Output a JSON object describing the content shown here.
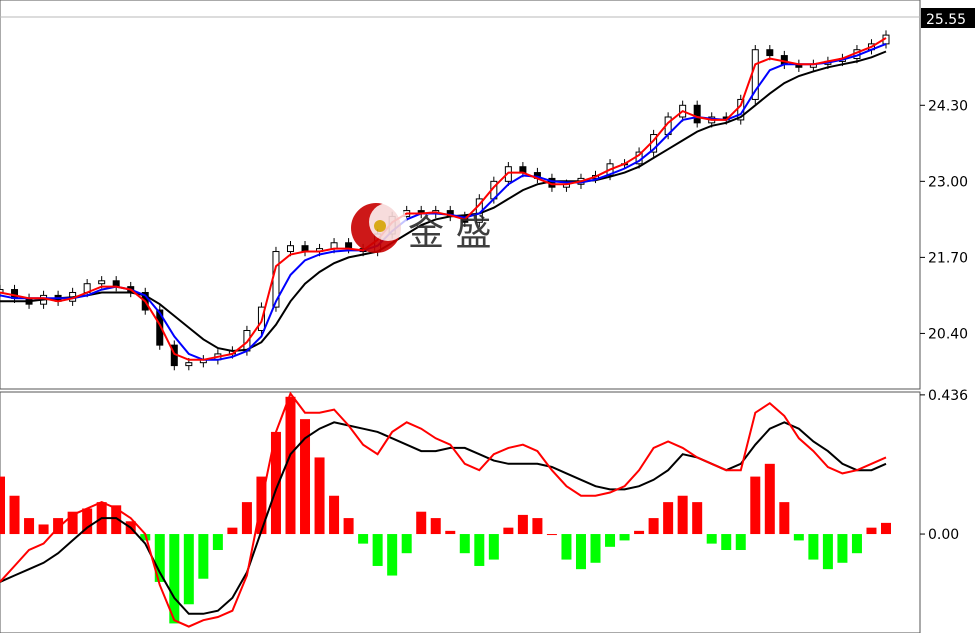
{
  "colors": {
    "bull_hist": "#ff0000",
    "bear_hist": "#00ff00",
    "ma_fast": "#ff0000",
    "ma_mid": "#0000ff",
    "ma_slow": "#000000",
    "macd_fast": "#ff0000",
    "macd_slow": "#000000",
    "candle": "#000000",
    "price_tag_bg": "#000000",
    "watermark": "#c80000"
  },
  "watermark": {
    "text": "金 盛",
    "icon": "moon-logo-icon"
  },
  "chart_data": [
    {
      "type": "candlestick",
      "title": "",
      "current_price": "25.55",
      "y_ticks": [
        "24.30",
        "23.00",
        "21.70",
        "20.40"
      ],
      "y_tick_values": [
        24.3,
        23.0,
        21.7,
        20.4
      ],
      "ylim": [
        19.45,
        26.1
      ],
      "series": [
        {
          "key": "close",
          "values": [
            21.15,
            21.0,
            20.9,
            21.05,
            20.95,
            21.1,
            21.25,
            21.3,
            21.2,
            21.1,
            20.8,
            20.2,
            19.85,
            19.9,
            19.95,
            20.05,
            20.1,
            20.45,
            20.85,
            21.8,
            21.9,
            21.8,
            21.85,
            21.95,
            21.85,
            21.8,
            22.1,
            22.4,
            22.5,
            22.45,
            22.5,
            22.4,
            22.3,
            22.7,
            23.0,
            23.25,
            23.15,
            23.05,
            22.9,
            22.95,
            23.05,
            23.1,
            23.3,
            23.3,
            23.5,
            23.8,
            24.1,
            24.3,
            24.0,
            24.1,
            24.05,
            24.4,
            25.25,
            25.15,
            25.0,
            24.95,
            25.0,
            25.05,
            25.1,
            25.25,
            25.35,
            25.5
          ]
        },
        {
          "key": "ma_fast",
          "values": [
            21.1,
            21.05,
            21.0,
            21.0,
            20.95,
            21.0,
            21.1,
            21.2,
            21.2,
            21.15,
            20.95,
            20.55,
            20.05,
            19.95,
            19.95,
            20.0,
            20.05,
            20.25,
            20.6,
            21.55,
            21.75,
            21.8,
            21.8,
            21.85,
            21.85,
            21.82,
            22.0,
            22.3,
            22.45,
            22.45,
            22.47,
            22.42,
            22.35,
            22.6,
            22.9,
            23.15,
            23.15,
            23.05,
            22.95,
            22.95,
            23.0,
            23.08,
            23.2,
            23.3,
            23.45,
            23.7,
            24.0,
            24.2,
            24.1,
            24.05,
            24.05,
            24.3,
            25.0,
            25.1,
            25.05,
            25.0,
            25.0,
            25.05,
            25.1,
            25.2,
            25.3,
            25.45
          ]
        },
        {
          "key": "ma_mid",
          "values": [
            21.05,
            21.0,
            21.0,
            21.0,
            21.0,
            21.0,
            21.05,
            21.15,
            21.2,
            21.15,
            21.05,
            20.75,
            20.35,
            20.05,
            19.95,
            19.95,
            20.0,
            20.1,
            20.35,
            20.95,
            21.4,
            21.65,
            21.75,
            21.8,
            21.82,
            21.82,
            21.9,
            22.15,
            22.35,
            22.45,
            22.45,
            22.43,
            22.38,
            22.45,
            22.7,
            22.95,
            23.1,
            23.08,
            23.0,
            22.98,
            22.98,
            23.03,
            23.12,
            23.22,
            23.35,
            23.55,
            23.8,
            24.05,
            24.1,
            24.07,
            24.05,
            24.15,
            24.55,
            24.9,
            25.0,
            25.0,
            25.0,
            25.03,
            25.08,
            25.15,
            25.25,
            25.35
          ]
        },
        {
          "key": "ma_slow",
          "values": [
            20.95,
            20.95,
            20.95,
            20.98,
            21.0,
            21.02,
            21.05,
            21.1,
            21.1,
            21.1,
            21.05,
            20.9,
            20.7,
            20.5,
            20.3,
            20.15,
            20.1,
            20.12,
            20.25,
            20.55,
            20.95,
            21.25,
            21.45,
            21.6,
            21.7,
            21.75,
            21.8,
            21.95,
            22.1,
            22.25,
            22.35,
            22.4,
            22.42,
            22.45,
            22.55,
            22.7,
            22.85,
            22.95,
            23.0,
            23.0,
            23.0,
            23.02,
            23.08,
            23.15,
            23.25,
            23.4,
            23.55,
            23.7,
            23.85,
            23.95,
            24.0,
            24.1,
            24.3,
            24.5,
            24.68,
            24.8,
            24.88,
            24.95,
            25.0,
            25.05,
            25.12,
            25.22
          ]
        }
      ]
    },
    {
      "type": "histogram",
      "title": "",
      "y_ticks": [
        "0.436",
        "0.00"
      ],
      "y_tick_values": [
        0.436,
        0.0
      ],
      "ylim": [
        -0.31,
        0.445
      ],
      "series": [
        {
          "key": "histogram",
          "values": [
            0.18,
            0.12,
            0.05,
            0.03,
            0.05,
            0.07,
            0.08,
            0.1,
            0.09,
            0.04,
            -0.02,
            -0.15,
            -0.28,
            -0.22,
            -0.14,
            -0.05,
            0.02,
            0.1,
            0.18,
            0.32,
            0.43,
            0.36,
            0.24,
            0.12,
            0.05,
            -0.03,
            -0.1,
            -0.13,
            -0.06,
            0.07,
            0.05,
            0.01,
            -0.06,
            -0.1,
            -0.08,
            0.02,
            0.06,
            0.05,
            0.0,
            -0.08,
            -0.11,
            -0.09,
            -0.04,
            -0.02,
            0.01,
            0.05,
            0.1,
            0.12,
            0.1,
            -0.03,
            -0.05,
            -0.05,
            0.18,
            0.22,
            0.1,
            -0.02,
            -0.08,
            -0.11,
            -0.09,
            -0.06,
            0.02,
            0.035
          ]
        },
        {
          "key": "macd_fast",
          "values": [
            -0.15,
            -0.1,
            -0.05,
            -0.03,
            0.02,
            0.06,
            0.08,
            0.1,
            0.08,
            0.05,
            0.0,
            -0.16,
            -0.27,
            -0.29,
            -0.27,
            -0.26,
            -0.24,
            -0.13,
            0.1,
            0.32,
            0.44,
            0.38,
            0.38,
            0.39,
            0.34,
            0.28,
            0.25,
            0.32,
            0.35,
            0.33,
            0.3,
            0.28,
            0.22,
            0.2,
            0.25,
            0.27,
            0.28,
            0.26,
            0.2,
            0.15,
            0.12,
            0.12,
            0.13,
            0.15,
            0.2,
            0.27,
            0.29,
            0.27,
            0.24,
            0.22,
            0.2,
            0.2,
            0.38,
            0.41,
            0.37,
            0.3,
            0.26,
            0.21,
            0.19,
            0.2,
            0.22,
            0.24
          ]
        },
        {
          "key": "macd_slow",
          "values": [
            -0.15,
            -0.13,
            -0.11,
            -0.09,
            -0.06,
            -0.02,
            0.02,
            0.05,
            0.05,
            0.02,
            -0.03,
            -0.12,
            -0.2,
            -0.25,
            -0.25,
            -0.24,
            -0.2,
            -0.12,
            0.01,
            0.14,
            0.25,
            0.3,
            0.33,
            0.35,
            0.34,
            0.33,
            0.32,
            0.3,
            0.28,
            0.26,
            0.26,
            0.27,
            0.27,
            0.25,
            0.23,
            0.22,
            0.22,
            0.22,
            0.21,
            0.19,
            0.17,
            0.15,
            0.14,
            0.14,
            0.15,
            0.17,
            0.2,
            0.25,
            0.24,
            0.22,
            0.2,
            0.22,
            0.28,
            0.33,
            0.35,
            0.33,
            0.29,
            0.26,
            0.22,
            0.2,
            0.2,
            0.22
          ]
        }
      ]
    }
  ]
}
